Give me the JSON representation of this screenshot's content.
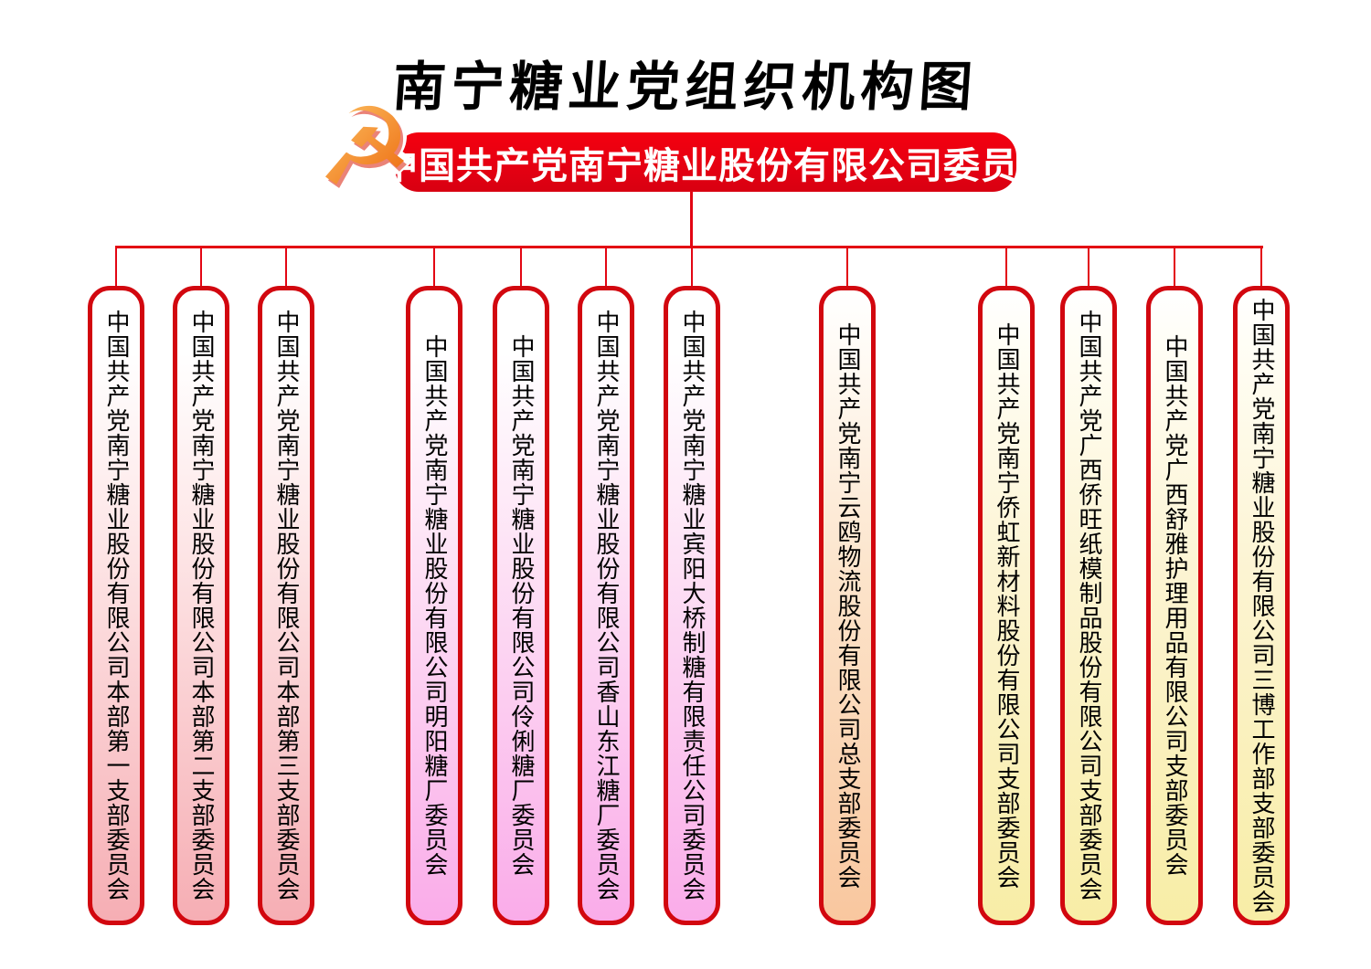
{
  "page": {
    "title": "南宁糖业党组织机构图"
  },
  "banner": {
    "label": "中国共产党南宁糖业股份有限公司委员会"
  },
  "icons": {
    "party_emblem": "☭"
  },
  "colors": {
    "banner_red": "#e60012",
    "connector_red": "#e30613",
    "box_border_red": "#d2070f",
    "theme_pink": "#f6aeb4",
    "theme_magenta": "#faace9",
    "theme_orange": "#f9c79f",
    "theme_yellow": "#f8eda6"
  },
  "branches": [
    {
      "label": "中国共产党南宁糖业股份有限公司本部第一支部委员会",
      "theme": "pink"
    },
    {
      "label": "中国共产党南宁糖业股份有限公司本部第二支部委员会",
      "theme": "pink"
    },
    {
      "label": "中国共产党南宁糖业股份有限公司本部第三支部委员会",
      "theme": "pink"
    },
    {
      "label": "中国共产党南宁糖业股份有限公司明阳糖厂委员会",
      "theme": "magenta"
    },
    {
      "label": "中国共产党南宁糖业股份有限公司伶俐糖厂委员会",
      "theme": "magenta"
    },
    {
      "label": "中国共产党南宁糖业股份有限公司香山东江糖厂委员会",
      "theme": "magenta"
    },
    {
      "label": "中国共产党南宁糖业宾阳大桥制糖有限责任公司委员会",
      "theme": "magenta"
    },
    {
      "label": "中国共产党南宁云鸥物流股份有限公司总支部委员会",
      "theme": "orange"
    },
    {
      "label": "中国共产党南宁侨虹新材料股份有限公司支部委员会",
      "theme": "yellow"
    },
    {
      "label": "中国共产党广西侨旺纸模制品股份有限公司支部委员会",
      "theme": "yellow"
    },
    {
      "label": "中国共产党广西舒雅护理用品有限公司支部委员会",
      "theme": "yellow"
    },
    {
      "label": "中国共产党南宁糖业股份有限公司三博工作部支部委员会",
      "theme": "yellow"
    }
  ]
}
